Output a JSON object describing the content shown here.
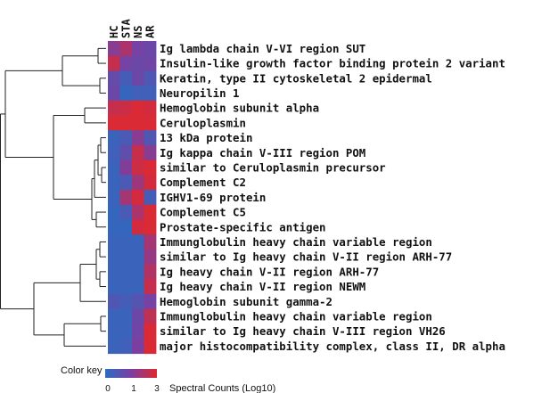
{
  "chart_data": {
    "type": "heatmap",
    "columns": [
      "HC",
      "STA",
      "NS",
      "AR"
    ],
    "rows": [
      "Ig lambda chain V-VI region SUT",
      "Insulin-like growth factor binding protein 2 variant",
      "Keratin, type II cytoskeletal 2 epidermal",
      "Neuropilin 1",
      "Hemoglobin subunit alpha",
      "Ceruloplasmin",
      "13 kDa protein",
      "Ig kappa chain V-III region POM",
      "similar to Ceruloplasmin precursor",
      "Complement C2",
      "IGHV1-69 protein",
      "Complement C5",
      "Prostate-specific antigen",
      "Immunglobulin heavy chain variable region",
      "similar to Ig heavy chain V-II region ARH-77",
      "Ig heavy chain V-II region ARH-77",
      "Ig heavy chain V-II region NEWM",
      "Hemoglobin subunit gamma-2",
      "Immunglobulin heavy chain variable region",
      "similar to Ig heavy chain V-III region VH26",
      "major histocompatibility complex, class II, DR alpha"
    ],
    "values": [
      [
        1.7,
        2.2,
        1.4,
        1.2
      ],
      [
        2.6,
        1.4,
        1.2,
        1.3
      ],
      [
        1.1,
        0.5,
        1.2,
        0.7
      ],
      [
        1.2,
        0.2,
        0.4,
        0.4
      ],
      [
        2.6,
        2.7,
        2.9,
        2.8
      ],
      [
        2.9,
        2.9,
        2.9,
        2.9
      ],
      [
        0.3,
        0.6,
        1.7,
        0.7
      ],
      [
        0.4,
        1.0,
        2.6,
        1.7
      ],
      [
        0.3,
        1.6,
        2.7,
        2.9
      ],
      [
        0.3,
        0.6,
        2.0,
        2.8
      ],
      [
        0.3,
        2.1,
        2.8,
        0.5
      ],
      [
        0.2,
        0.6,
        2.2,
        2.9
      ],
      [
        0.2,
        0.2,
        2.8,
        2.9
      ],
      [
        0.3,
        0.3,
        0.3,
        2.1
      ],
      [
        0.3,
        0.3,
        0.3,
        1.9
      ],
      [
        0.3,
        0.3,
        0.3,
        2.3
      ],
      [
        0.3,
        0.3,
        0.3,
        2.6
      ],
      [
        0.7,
        0.5,
        0.8,
        1.4
      ],
      [
        0.3,
        0.3,
        1.2,
        2.5
      ],
      [
        0.3,
        0.3,
        1.3,
        2.9
      ],
      [
        0.3,
        0.4,
        1.5,
        2.9
      ]
    ],
    "color_scale": {
      "min": 0,
      "mid": 1.5,
      "max": 3,
      "low_color": "#2a6cc2",
      "mid_color": "#7b3fa1",
      "high_color": "#e0282e"
    },
    "color_key": {
      "title": "Color key",
      "ticks": [
        "0",
        "1",
        "3"
      ],
      "label": "Spectral Counts (Log10)"
    },
    "dendrogram": "left",
    "grid": false,
    "legend_position": "bottom-left"
  }
}
